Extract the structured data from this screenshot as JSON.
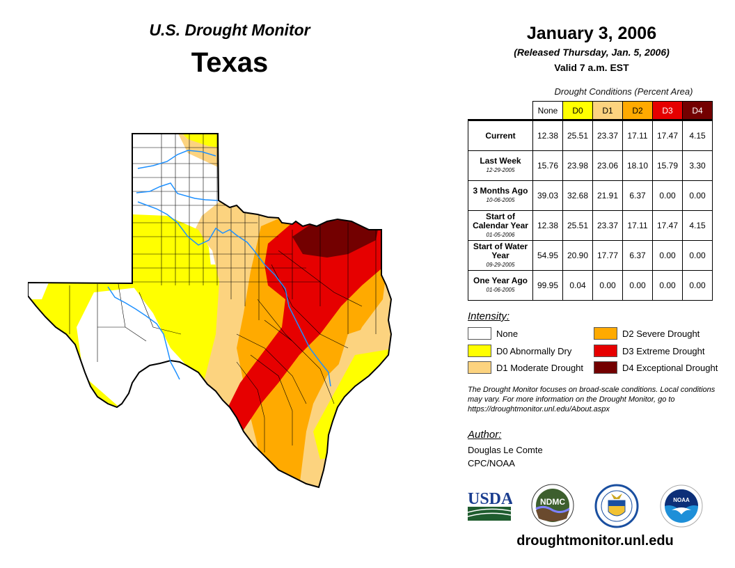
{
  "header": {
    "title": "U.S. Drought Monitor",
    "state": "Texas",
    "date": "January 3, 2006",
    "released": "(Released Thursday, Jan. 5, 2006)",
    "valid": "Valid 7 a.m. EST"
  },
  "table": {
    "caption": "Drought Conditions (Percent Area)",
    "columns": [
      "None",
      "D0",
      "D1",
      "D2",
      "D3",
      "D4"
    ],
    "column_colors": [
      "#ffffff",
      "#ffff00",
      "#fcd37f",
      "#ffaa00",
      "#e60000",
      "#730000"
    ],
    "rows": [
      {
        "label": "Current",
        "date": "",
        "values": [
          "12.38",
          "25.51",
          "23.37",
          "17.11",
          "17.47",
          "4.15"
        ]
      },
      {
        "label": "Last Week",
        "date": "12-29-2005",
        "values": [
          "15.76",
          "23.98",
          "23.06",
          "18.10",
          "15.79",
          "3.30"
        ]
      },
      {
        "label": "3 Months Ago",
        "date": "10-06-2005",
        "values": [
          "39.03",
          "32.68",
          "21.91",
          "6.37",
          "0.00",
          "0.00"
        ]
      },
      {
        "label": "Start of Calendar Year",
        "date": "01-05-2006",
        "values": [
          "12.38",
          "25.51",
          "23.37",
          "17.11",
          "17.47",
          "4.15"
        ]
      },
      {
        "label": "Start of Water Year",
        "date": "09-29-2005",
        "values": [
          "54.95",
          "20.90",
          "17.77",
          "6.37",
          "0.00",
          "0.00"
        ]
      },
      {
        "label": "One Year Ago",
        "date": "01-06-2005",
        "values": [
          "99.95",
          "0.04",
          "0.00",
          "0.00",
          "0.00",
          "0.00"
        ]
      }
    ]
  },
  "legend": {
    "title": "Intensity:",
    "items": [
      {
        "label": "None",
        "color": "#ffffff"
      },
      {
        "label": "D0 Abnormally Dry",
        "color": "#ffff00"
      },
      {
        "label": "D1 Moderate Drought",
        "color": "#fcd37f"
      },
      {
        "label": "D2 Severe Drought",
        "color": "#ffaa00"
      },
      {
        "label": "D3 Extreme Drought",
        "color": "#e60000"
      },
      {
        "label": "D4 Exceptional Drought",
        "color": "#730000"
      }
    ]
  },
  "note": "The Drought Monitor focuses on broad-scale conditions. Local conditions may vary. For more information on the Drought Monitor, go to https://droughtmonitor.unl.edu/About.aspx",
  "author": {
    "title": "Author:",
    "name": "Douglas Le Comte",
    "org": "CPC/NOAA"
  },
  "logos": {
    "usda": "USDA",
    "ndmc": "NDMC",
    "noaa": "NOAA",
    "commerce": "Department of Commerce"
  },
  "footer": {
    "site": "droughtmonitor.unl.edu"
  },
  "map": {
    "region": "Texas",
    "river_color": "#1e90ff"
  }
}
